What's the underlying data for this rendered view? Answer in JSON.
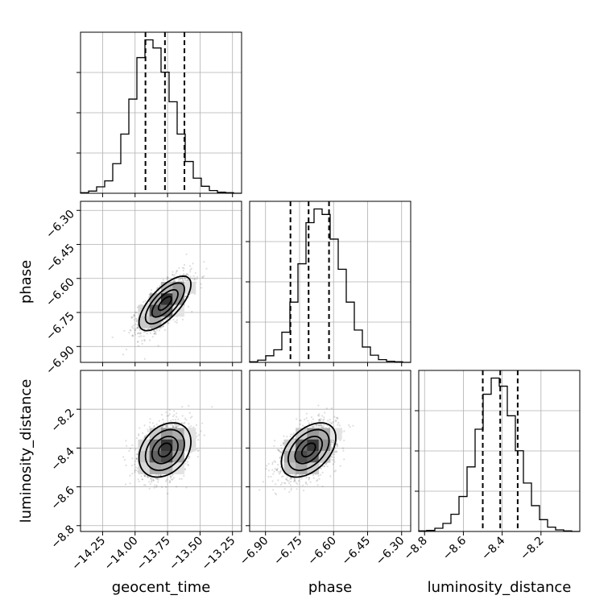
{
  "chart_data": {
    "type": "corner",
    "parameters": [
      {
        "name": "geocent_time",
        "label": "geocent_time",
        "range": [
          -14.42,
          -13.18
        ],
        "ticks": [
          -14.25,
          -14.0,
          -13.75,
          -13.5,
          -13.25
        ],
        "tick_labels": [
          "−14.25",
          "−14.00",
          "−13.75",
          "−13.50",
          "−13.25"
        ],
        "mean": -13.77,
        "sd": 0.1,
        "quantiles": [
          -13.92,
          -13.77,
          -13.62
        ]
      },
      {
        "name": "phase",
        "label": "phase",
        "range": [
          -6.97,
          -6.26
        ],
        "ticks": [
          -6.9,
          -6.75,
          -6.6,
          -6.45,
          -6.3
        ],
        "tick_labels": [
          "−6.90",
          "−6.75",
          "−6.60",
          "−6.45",
          "−6.30"
        ],
        "mean": -6.71,
        "sd": 0.06,
        "quantiles": [
          -6.79,
          -6.71,
          -6.62
        ]
      },
      {
        "name": "luminosity_distance",
        "label": "luminosity_distance",
        "range": [
          -8.83,
          -8.0
        ],
        "ticks": [
          -8.8,
          -8.6,
          -8.4,
          -8.2
        ],
        "tick_labels": [
          "−8.8",
          "−8.6",
          "−8.4",
          "−8.2"
        ],
        "mean": -8.41,
        "sd": 0.07,
        "quantiles": [
          -8.5,
          -8.41,
          -8.32
        ]
      }
    ],
    "histograms": [
      {
        "parameter": "geocent_time",
        "bins": 20,
        "counts": [
          1,
          4,
          12,
          23,
          55,
          110,
          175,
          252,
          285,
          270,
          225,
          170,
          110,
          59,
          28,
          13,
          5,
          2,
          1,
          0
        ]
      },
      {
        "parameter": "phase",
        "bins": 20,
        "counts": [
          1,
          4,
          12,
          23,
          55,
          110,
          180,
          255,
          280,
          270,
          225,
          170,
          110,
          59,
          28,
          13,
          5,
          2,
          1,
          0
        ]
      },
      {
        "parameter": "luminosity_distance",
        "bins": 20,
        "counts": [
          1,
          2,
          6,
          15,
          32,
          65,
          120,
          190,
          255,
          285,
          270,
          215,
          150,
          90,
          48,
          22,
          8,
          3,
          1,
          0
        ]
      }
    ],
    "correlations": {
      "geocent_time__phase": 0.7,
      "geocent_time__luminosity_distance": 0.3,
      "phase__luminosity_distance": 0.45
    },
    "grid": true
  }
}
